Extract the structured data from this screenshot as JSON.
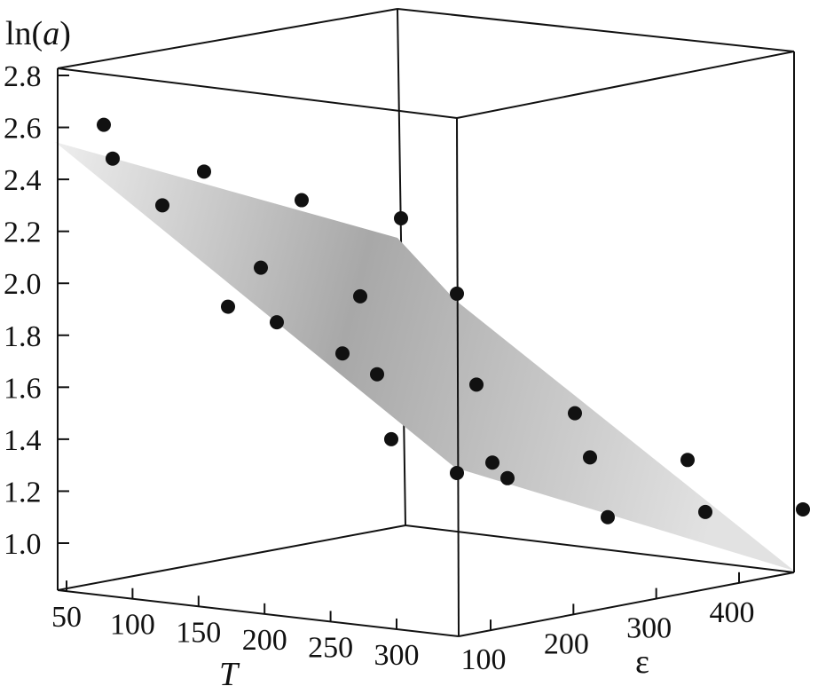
{
  "chart_data": {
    "type": "scatter",
    "title": "",
    "xlabel": "T",
    "ylabel": "ε",
    "zlabel": "ln(a)",
    "zlabel_prefix": "ln(",
    "zlabel_var": "a",
    "zlabel_suffix": ")",
    "x_ticks": [
      "50",
      "100",
      "150",
      "200",
      "250",
      "300"
    ],
    "y_ticks": [
      "100",
      "200",
      "300",
      "400"
    ],
    "z_ticks": [
      "1.0",
      "1.2",
      "1.4",
      "1.6",
      "1.8",
      "2.0",
      "2.2",
      "2.4",
      "2.6",
      "2.8"
    ],
    "zlim": [
      0.85,
      2.8
    ],
    "grid": false,
    "surface": "fitted regression plane",
    "points": [
      {
        "z": 2.61
      },
      {
        "z": 2.48
      },
      {
        "z": 2.3
      },
      {
        "z": 2.43
      },
      {
        "z": 1.91
      },
      {
        "z": 2.06
      },
      {
        "z": 1.85
      },
      {
        "z": 2.32
      },
      {
        "z": 1.73
      },
      {
        "z": 1.95
      },
      {
        "z": 1.65
      },
      {
        "z": 1.4
      },
      {
        "z": 2.25
      },
      {
        "z": 1.96
      },
      {
        "z": 1.27
      },
      {
        "z": 1.61
      },
      {
        "z": 1.31
      },
      {
        "z": 1.25
      },
      {
        "z": 1.5
      },
      {
        "z": 1.33
      },
      {
        "z": 1.1
      },
      {
        "z": 1.32
      },
      {
        "z": 1.12
      },
      {
        "z": 1.13
      }
    ],
    "colors": {
      "point": "#111111",
      "surface_light": "#e6e6e6",
      "surface_dark": "#a9a9a9",
      "box": "#111111"
    }
  }
}
